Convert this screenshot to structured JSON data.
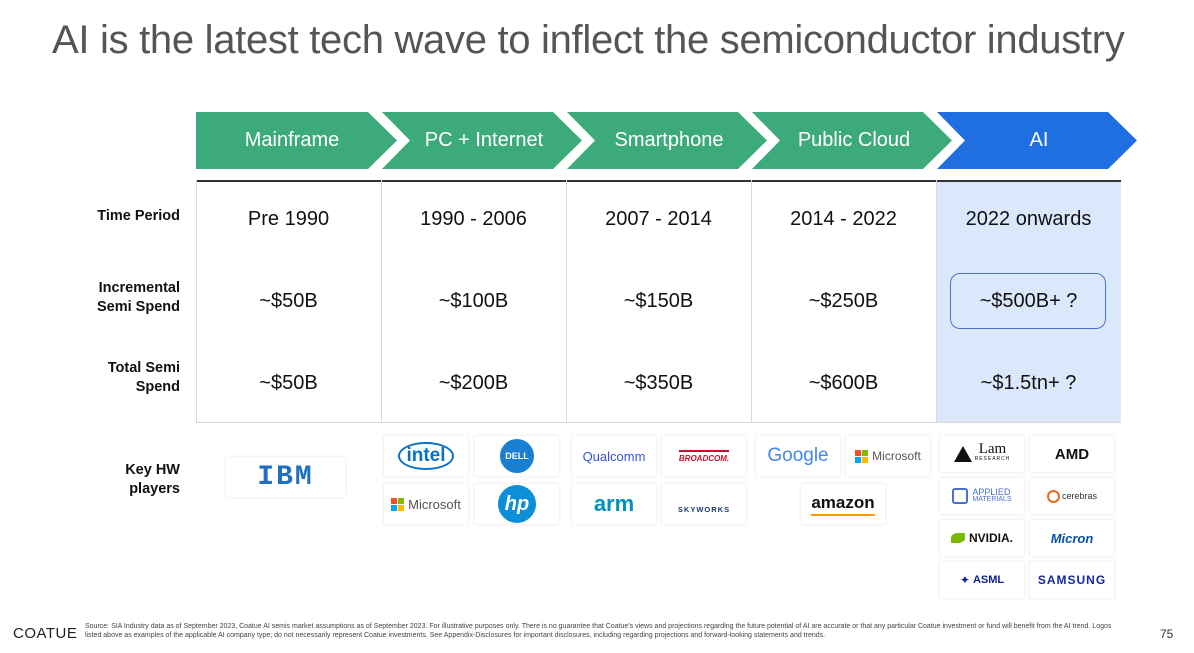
{
  "title": "AI is the latest tech wave to inflect the semiconductor industry",
  "colors": {
    "green": "#3daa7b",
    "blue": "#1f6fe0",
    "ai_column": "#dbe8fb",
    "highlight_border": "#4a74c9"
  },
  "eras": [
    "Mainframe",
    "PC + Internet",
    "Smartphone",
    "Public Cloud",
    "AI"
  ],
  "row_labels": {
    "time_period": "Time Period",
    "incremental_1": "Incremental",
    "incremental_2": "Semi Spend",
    "total_1": "Total Semi",
    "total_2": "Spend",
    "hw_1": "Key HW",
    "hw_2": "players"
  },
  "time_period": [
    "Pre 1990",
    "1990 - 2006",
    "2007 - 2014",
    "2014 - 2022",
    "2022 onwards"
  ],
  "incremental_spend": [
    "~$50B",
    "~$100B",
    "~$150B",
    "~$250B",
    "~$500B+ ?"
  ],
  "total_spend": [
    "~$50B",
    "~$200B",
    "~$350B",
    "~$600B",
    "~$1.5tn+ ?"
  ],
  "logos": {
    "ibm": "IBM",
    "intel": "intel",
    "dell": "DELL",
    "microsoft": "Microsoft",
    "hp": "hp",
    "qualcomm": "Qualcomm",
    "broadcom": "BROADCOM.",
    "arm": "arm",
    "skyworks": "SKYWORKS",
    "google": "Google",
    "amazon": "amazon",
    "lam": "Lam",
    "lam_sub": "RESEARCH",
    "amd": "AMD",
    "applied_1": "APPLIED",
    "applied_2": "MATERIALS",
    "cerebras": "cerebras",
    "nvidia": "NVIDIA.",
    "micron": "Micron",
    "asml": "ASML",
    "samsung": "SAMSUNG"
  },
  "footer": {
    "brand": "COATUE",
    "source": "Source: SIA Industry data as of September 2023, Coatue AI semis market assumptions as of September 2023. For illustrative purposes only. There is no guarantee that Coatue's views and projections regarding the future potential of AI are accurate or that any particular Coatue investment or fund will benefit from the AI trend. Logos listed above as examples of the applicable AI company type; do not necessarily represent Coatue investments. See Appendix-Disclosures for important disclosures, including regarding projections and forward-looking statements and trends.",
    "page": "75"
  }
}
